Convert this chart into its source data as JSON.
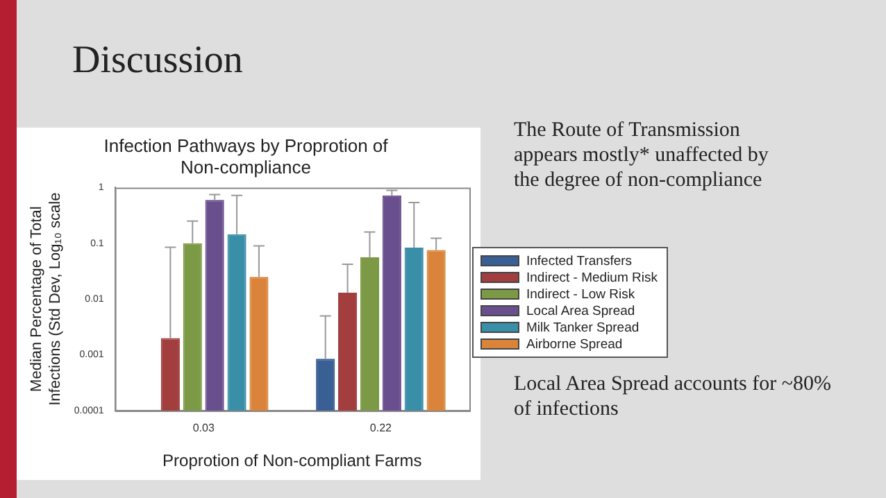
{
  "chart_data": {
    "type": "bar",
    "title": "Infection Pathways by Proprotion of Non-compliance",
    "xlabel": "Proprotion of Non-compliant Farms",
    "ylabel": "Median Percentage of Total Infections (Std Dev, Log₁₀ scale",
    "categories": [
      "0.03",
      "0.22"
    ],
    "series": [
      {
        "name": "Infected Transfers",
        "color": "#3a5f95",
        "values": [
          null,
          0.00085
        ],
        "errors": [
          null,
          [
            0.00085,
            0.005
          ]
        ]
      },
      {
        "name": "Indirect - Medium Risk",
        "color": "#a23e3e",
        "values": [
          0.002,
          0.013
        ],
        "errors": [
          [
            0.002,
            0.085
          ],
          [
            0.013,
            0.042
          ]
        ]
      },
      {
        "name": "Indirect - Low Risk",
        "color": "#7c9a45",
        "values": [
          0.1,
          0.056
        ],
        "errors": [
          [
            0.1,
            0.25
          ],
          [
            0.056,
            0.16
          ]
        ]
      },
      {
        "name": "Local Area Spread",
        "color": "#6a4f8e",
        "values": [
          0.6,
          0.72
        ],
        "errors": [
          [
            0.6,
            0.75
          ],
          [
            0.72,
            0.89
          ]
        ]
      },
      {
        "name": "Milk Tanker Spread",
        "color": "#3a8fa8",
        "values": [
          0.145,
          0.084
        ],
        "errors": [
          [
            0.145,
            0.72
          ],
          [
            0.084,
            0.54
          ]
        ]
      },
      {
        "name": "Airborne Spread",
        "color": "#d9843a",
        "values": [
          0.025,
          0.076
        ],
        "errors": [
          [
            0.025,
            0.09
          ],
          [
            0.076,
            0.123
          ]
        ]
      }
    ],
    "log": "y",
    "ylim": [
      0.0001,
      1
    ],
    "yticks": [
      0.0001,
      0.001,
      0.01,
      0.1,
      1
    ],
    "grid": false,
    "legend": "right",
    "annotations": [
      "Discussion",
      "The Route of Transmission appears mostly* unaffected by the degree of non-compliance",
      "Local Area Spread accounts for ~80% of infections"
    ]
  }
}
